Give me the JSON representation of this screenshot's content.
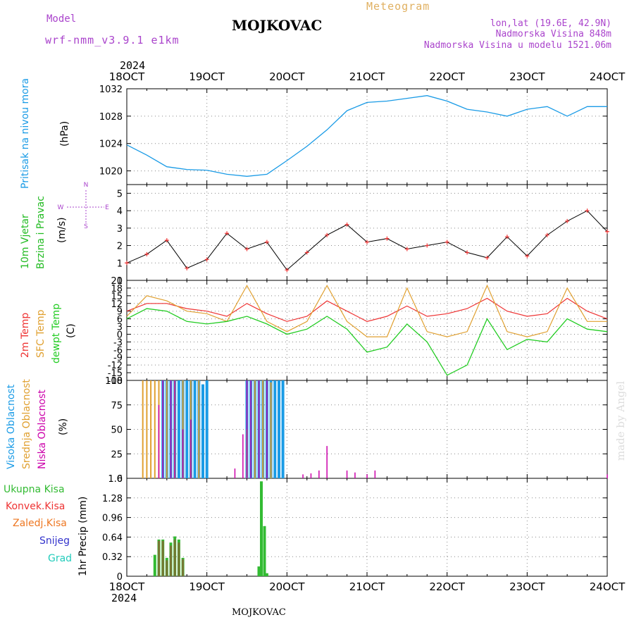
{
  "header": {
    "model_label": "Model",
    "model_name": "wrf-nmm_v3.9.1 e1km",
    "station": "MOJKOVAC",
    "meteogram": "Meteogram",
    "coords": "lon,lat (19.6E, 42.9N)",
    "elevation": "Nadmorska Visina 848m",
    "model_elevation": "Nadmorska Visina u modelu 1521.06m",
    "year_top": "2024",
    "year_bottom": "2024",
    "footer_station": "MOJKOVAC",
    "credit": "made by Angel"
  },
  "colors": {
    "pressure": "#1a9be6",
    "t2m": "#ee3333",
    "sfc": "#e0a030",
    "dew": "#22cc22",
    "high_cloud": "#1a9be6",
    "mid_cloud": "#e0a030",
    "low_cloud": "#cc00aa",
    "total_precip": "#33bb33",
    "conv_precip": "#ee3333",
    "frz_precip": "#ee7722",
    "snow": "#3333cc",
    "graupel": "#22ccbb",
    "purple_text": "#aa44cc",
    "gold_text": "#e0b060"
  },
  "chart_data": [
    {
      "type": "line",
      "panel": "pressure",
      "labels": [
        "Pritisak na nivou mora",
        "(hPa)"
      ],
      "x_ticks": [
        "18OCT",
        "19OCT",
        "20OCT",
        "21OCT",
        "22OCT",
        "23OCT",
        "24OCT"
      ],
      "x_days": [
        0,
        1,
        2,
        3,
        4,
        5,
        6
      ],
      "ylim": [
        1018,
        1032
      ],
      "y_ticks": [
        1020,
        1024,
        1028,
        1032
      ],
      "grid": true,
      "series": [
        {
          "x": [
            0,
            0.25,
            0.5,
            0.75,
            1.0,
            1.25,
            1.5,
            1.75,
            2.0,
            2.25,
            2.5,
            2.75,
            3.0,
            3.25,
            3.5,
            3.75,
            4.0,
            4.25,
            4.5,
            4.75,
            5.0,
            5.25,
            5.5,
            5.75,
            6.0
          ],
          "y": [
            1023.8,
            1022.3,
            1020.6,
            1020.2,
            1020.1,
            1019.5,
            1019.2,
            1019.5,
            1021.5,
            1023.6,
            1026.0,
            1028.8,
            1030.0,
            1030.2,
            1030.6,
            1031.0,
            1030.2,
            1029.0,
            1028.6,
            1028.0,
            1029.0,
            1029.4,
            1028.0,
            1029.4,
            1029.4
          ]
        }
      ]
    },
    {
      "type": "line",
      "panel": "wind",
      "labels": [
        "10m Vjetar",
        "Brzina i Pravac",
        "(m/s)"
      ],
      "compass": [
        "N",
        "S",
        "W",
        "E"
      ],
      "ylim": [
        0,
        5.5
      ],
      "y_ticks": [
        0,
        1,
        2,
        3,
        4,
        5
      ],
      "grid": true,
      "series": [
        {
          "name": "speed",
          "x": [
            0,
            0.25,
            0.5,
            0.75,
            1.0,
            1.25,
            1.5,
            1.75,
            2.0,
            2.25,
            2.5,
            2.75,
            3.0,
            3.25,
            3.5,
            3.75,
            4.0,
            4.25,
            4.5,
            4.75,
            5.0,
            5.25,
            5.5,
            5.75,
            6.0
          ],
          "y": [
            1.0,
            1.5,
            2.3,
            0.7,
            1.2,
            2.7,
            1.8,
            2.2,
            0.6,
            1.6,
            2.6,
            3.2,
            2.2,
            2.4,
            1.8,
            2.0,
            2.2,
            1.6,
            1.3,
            2.5,
            1.4,
            2.6,
            3.4,
            4.0,
            2.8
          ]
        }
      ]
    },
    {
      "type": "line",
      "panel": "temperature",
      "labels": [
        "2m Temp",
        "SFC Temp",
        "dewpt Temp",
        "(C)"
      ],
      "ylim": [
        -18,
        21
      ],
      "y_ticks": [
        -18,
        -15,
        -12,
        -9,
        -6,
        -3,
        0,
        3,
        6,
        9,
        12,
        15,
        18,
        21
      ],
      "grid": true,
      "series": [
        {
          "name": "2m Temp",
          "x": [
            0,
            0.25,
            0.5,
            0.75,
            1.0,
            1.25,
            1.5,
            1.75,
            2.0,
            2.25,
            2.5,
            2.75,
            3.0,
            3.25,
            3.5,
            3.75,
            4.0,
            4.25,
            4.5,
            4.75,
            5.0,
            5.25,
            5.5,
            5.75,
            6.0
          ],
          "y": [
            9,
            12,
            12,
            10,
            9,
            7,
            12,
            8,
            5,
            7,
            13,
            9,
            5,
            7,
            11,
            7,
            8,
            10,
            14,
            9,
            7,
            8,
            14,
            9,
            6
          ]
        },
        {
          "name": "SFC Temp",
          "x": [
            0,
            0.25,
            0.5,
            0.75,
            1.0,
            1.25,
            1.5,
            1.75,
            2.0,
            2.25,
            2.5,
            2.75,
            3.0,
            3.25,
            3.5,
            3.75,
            4.0,
            4.25,
            4.5,
            4.75,
            5.0,
            5.25,
            5.5,
            5.75,
            6.0
          ],
          "y": [
            7,
            15,
            13,
            9,
            8,
            5,
            19,
            5,
            1,
            5,
            19,
            5,
            -1,
            -1,
            18,
            1,
            -1,
            1,
            19,
            1,
            -1,
            1,
            18,
            5,
            5
          ]
        },
        {
          "name": "dewpt Temp",
          "x": [
            0,
            0.25,
            0.5,
            0.75,
            1.0,
            1.25,
            1.5,
            1.75,
            2.0,
            2.25,
            2.5,
            2.75,
            3.0,
            3.25,
            3.5,
            3.75,
            4.0,
            4.25,
            4.5,
            4.75,
            5.0,
            5.25,
            5.5,
            5.75,
            6.0
          ],
          "y": [
            6,
            10,
            9,
            5,
            4,
            5,
            7,
            4,
            0,
            2,
            7,
            2,
            -7,
            -5,
            4,
            -3,
            -16,
            -12,
            6,
            -6,
            -2,
            -3,
            6,
            2,
            1
          ]
        }
      ]
    },
    {
      "type": "bar",
      "panel": "clouds",
      "labels": [
        "Visoka Oblacnost",
        "Srednja Oblacnost",
        "Niska Oblacnost",
        "(%)"
      ],
      "ylim": [
        0,
        100
      ],
      "y_ticks": [
        0,
        25,
        50,
        75,
        100
      ],
      "grid": true,
      "series": [
        {
          "name": "Visoka Oblacnost",
          "x": [
            0.45,
            0.5,
            0.55,
            0.6,
            0.65,
            0.7,
            0.75,
            0.8,
            0.85,
            0.9,
            0.95,
            1.0,
            1.5,
            1.55,
            1.6,
            1.65,
            1.7,
            1.75,
            1.8,
            1.85,
            1.9,
            1.95
          ],
          "values": [
            100,
            100,
            100,
            100,
            100,
            100,
            100,
            100,
            100,
            100,
            96,
            100,
            100,
            100,
            100,
            100,
            100,
            100,
            100,
            100,
            100,
            100
          ]
        },
        {
          "name": "Srednja Oblacnost",
          "x": [
            0.2,
            0.25,
            0.3,
            0.35,
            0.4,
            0.5,
            0.6,
            0.7,
            0.8,
            0.9,
            1.5,
            1.6,
            1.7,
            1.8
          ],
          "values": [
            100,
            100,
            100,
            100,
            100,
            100,
            100,
            100,
            100,
            100,
            50,
            100,
            100,
            98
          ]
        },
        {
          "name": "Niska Oblacnost",
          "x": [
            0.4,
            0.45,
            0.55,
            0.6,
            0.7,
            0.8,
            1.35,
            1.45,
            1.5,
            1.55,
            1.65,
            1.75,
            2.2,
            2.3,
            2.4,
            2.5,
            2.75,
            2.85,
            3.0,
            3.1,
            6.0
          ],
          "values": [
            75,
            100,
            100,
            100,
            50,
            60,
            10,
            45,
            100,
            100,
            100,
            100,
            4,
            5,
            8,
            33,
            8,
            6,
            4,
            8,
            4
          ]
        }
      ]
    },
    {
      "type": "bar",
      "panel": "precipitation",
      "labels": [
        "Ukupna Kisa",
        "Konvek.Kisa",
        "Zaledj.Kisa",
        "Snijeg",
        "Grad",
        "1hr Precip (mm)"
      ],
      "ylim": [
        0,
        1.6
      ],
      "y_ticks": [
        0,
        0.32,
        0.64,
        0.96,
        1.28,
        1.6
      ],
      "grid": true,
      "series": [
        {
          "name": "Ukupna Kisa",
          "x": [
            0.35,
            0.4,
            0.45,
            0.5,
            0.55,
            0.6,
            0.65,
            0.7,
            1.65,
            1.68,
            1.72,
            1.75
          ],
          "values": [
            0.35,
            0.6,
            0.6,
            0.3,
            0.55,
            0.65,
            0.6,
            0.3,
            0.16,
            1.55,
            0.82,
            0.05
          ]
        },
        {
          "name": "Konvek.Kisa",
          "x": [
            0.4,
            0.45,
            0.5,
            0.55,
            0.6,
            0.65,
            0.7
          ],
          "values": [
            0.58,
            0.58,
            0.26,
            0.5,
            0.6,
            0.55,
            0.28
          ]
        }
      ]
    }
  ]
}
